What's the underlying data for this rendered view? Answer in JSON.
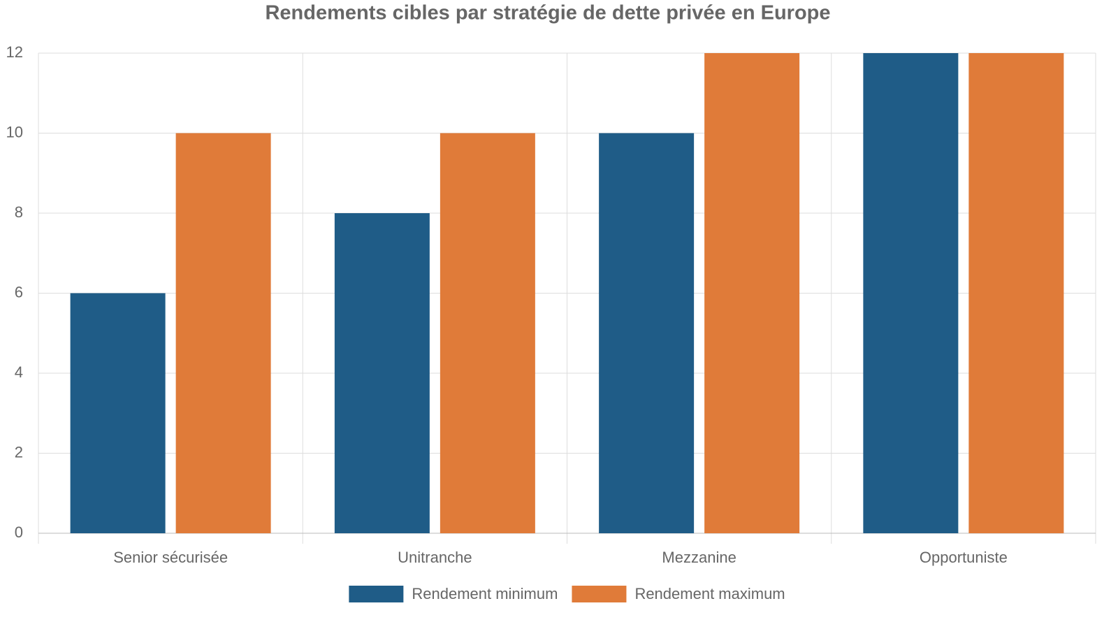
{
  "chart_data": {
    "type": "bar",
    "title": "Rendements cibles par stratégie de dette privée en Europe",
    "categories": [
      "Senior sécurisée",
      "Unitranche",
      "Mezzanine",
      "Opportuniste"
    ],
    "series": [
      {
        "name": "Rendement minimum",
        "color": "#1f5c87",
        "values": [
          6,
          8,
          10,
          12
        ]
      },
      {
        "name": "Rendement maximum",
        "color": "#e07b39",
        "values": [
          10,
          10,
          12,
          12
        ]
      }
    ],
    "ylim": [
      0,
      12
    ],
    "yticks": [
      0,
      2,
      4,
      6,
      8,
      10,
      12
    ],
    "grid": true,
    "legend": "bottom"
  }
}
